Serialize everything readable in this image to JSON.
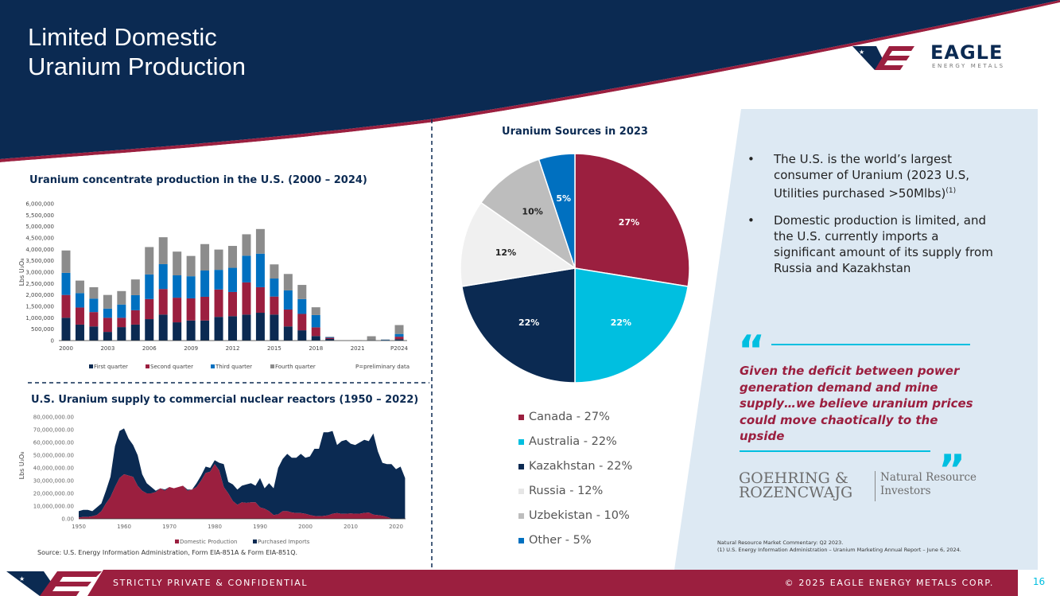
{
  "header": {
    "title": "Limited Domestic\nUranium Production",
    "logo_text": "EAGLE",
    "logo_sub": "ENERGY METALS"
  },
  "colors": {
    "navy": "#0b2a52",
    "crimson": "#9b1f3f",
    "cyan": "#00bfe0",
    "panel": "#dde9f3"
  },
  "bar_chart": {
    "title": "Uranium concentrate production in the U.S. (2000 – 2024)",
    "note": "P=preliminary data"
  },
  "area_chart": {
    "title": "U.S. Uranium supply to commercial nuclear reactors (1950 – 2022)",
    "source": "Source: U.S. Energy Information Administration, Form EIA-851A & Form EIA-851Q."
  },
  "pie_chart": {
    "title": "Uranium Sources in 2023"
  },
  "chart_data": [
    {
      "type": "bar",
      "stacked": true,
      "title": "Uranium concentrate production in the U.S. (2000 – 2024)",
      "ylabel": "Lbs U3O8",
      "ylim": [
        0,
        6000000
      ],
      "yticks": [
        "6,000,000",
        "5,500,000",
        "5,000,000",
        "4,500,000",
        "4,000,000",
        "3,500,000",
        "3,000,000",
        "2,500,000",
        "2,000,000",
        "1,500,000",
        "1,000,000",
        "500,000",
        "0"
      ],
      "xtick_labels": {
        "2000": "2000",
        "2003": "2003",
        "2006": "2006",
        "2009": "2009",
        "2012": "2012",
        "2015": "2015",
        "2018": "2018",
        "2021": "2021",
        "2024": "P2024"
      },
      "categories": [
        "2000",
        "2001",
        "2002",
        "2003",
        "2004",
        "2005",
        "2006",
        "2007",
        "2008",
        "2009",
        "2010",
        "2011",
        "2012",
        "2013",
        "2014",
        "2015",
        "2016",
        "2017",
        "2018",
        "2019",
        "2020",
        "2021",
        "2022",
        "2023",
        "2024"
      ],
      "series": [
        {
          "name": "First quarter",
          "color": "#0b2a52",
          "values": [
            1000000,
            700000,
            620000,
            380000,
            590000,
            700000,
            940000,
            1140000,
            800000,
            880000,
            880000,
            1040000,
            1070000,
            1140000,
            1220000,
            1140000,
            620000,
            450000,
            200000,
            70000,
            0,
            0,
            0,
            10000,
            60000
          ]
        },
        {
          "name": "Second quarter",
          "color": "#9b1f3f",
          "values": [
            1000000,
            750000,
            630000,
            620000,
            410000,
            630000,
            880000,
            1120000,
            1080000,
            970000,
            1040000,
            1200000,
            1060000,
            1410000,
            1120000,
            790000,
            740000,
            720000,
            380000,
            50000,
            0,
            0,
            0,
            10000,
            110000
          ]
        },
        {
          "name": "Third quarter",
          "color": "#0070c0",
          "values": [
            970000,
            630000,
            590000,
            400000,
            580000,
            660000,
            1080000,
            1090000,
            980000,
            970000,
            1150000,
            860000,
            1060000,
            1170000,
            1470000,
            790000,
            840000,
            650000,
            540000,
            30000,
            0,
            0,
            10000,
            20000,
            120000
          ]
        },
        {
          "name": "Fourth quarter",
          "color": "#8c8c8c",
          "values": [
            980000,
            550000,
            500000,
            600000,
            590000,
            690000,
            1200000,
            1180000,
            1040000,
            890000,
            1160000,
            890000,
            960000,
            940000,
            1080000,
            620000,
            720000,
            620000,
            340000,
            20000,
            0,
            10000,
            180000,
            10000,
            390000
          ]
        }
      ]
    },
    {
      "type": "area",
      "stacked": true,
      "title": "U.S. Uranium supply to commercial nuclear reactors (1950 – 2022)",
      "ylabel": "Lbs U3O8",
      "ylim": [
        0,
        80000000
      ],
      "yticks": [
        "80,000,000.00",
        "70,000,000.00",
        "60,000,000.00",
        "50,000,000.00",
        "40,000,000.00",
        "30,000,000.00",
        "20,000,000.00",
        "10,000,000.00",
        "0.00"
      ],
      "xticks": [
        "1950",
        "1960",
        "1970",
        "1980",
        "1990",
        "2000",
        "2010",
        "2020"
      ],
      "x_start": 1950,
      "series": [
        {
          "name": "Domestic Production",
          "color": "#9b1f3f",
          "values_millions": [
            1,
            1.5,
            1.5,
            2,
            3,
            6,
            12,
            17,
            25,
            32,
            35,
            34,
            33,
            26,
            22,
            20,
            20,
            21,
            24,
            22,
            25,
            24,
            25,
            26,
            22,
            23,
            25,
            30,
            36,
            37,
            43,
            38,
            25,
            20,
            14,
            11,
            13,
            12.5,
            13,
            13,
            9,
            8,
            6,
            3,
            3.5,
            6,
            6,
            5,
            4.5,
            4.5,
            4,
            3,
            2.3,
            2,
            2.3,
            2.7,
            4,
            4.5,
            3.9,
            4,
            4.2,
            4,
            4.1,
            4.6,
            4.9,
            3.3,
            2.9,
            2.4,
            1.5,
            0.2,
            0,
            0,
            0.2
          ]
        },
        {
          "name": "Purchased Imports",
          "color": "#0b2a52",
          "values_millions": [
            5,
            5.5,
            5.5,
            4,
            6,
            6,
            10,
            16,
            32,
            37,
            36,
            29,
            25,
            24,
            13,
            8,
            5,
            1,
            0,
            1,
            0,
            0,
            0,
            0,
            1,
            0,
            3,
            4,
            5,
            3,
            3,
            6,
            18,
            9,
            13,
            12,
            13,
            14.5,
            15,
            13,
            23,
            16,
            22,
            21,
            36.5,
            41,
            45,
            43,
            43.5,
            46.5,
            44,
            46,
            52.7,
            53,
            65.7,
            65.3,
            65,
            53.5,
            57.1,
            58,
            54.8,
            54,
            55.9,
            57.4,
            56.1,
            63.7,
            50.1,
            41.6,
            41.5,
            42.8,
            39,
            41,
            31.8
          ]
        }
      ]
    },
    {
      "type": "pie",
      "title": "Uranium Sources in 2023",
      "slices": [
        {
          "label": "Canada",
          "value": 27,
          "text": "27%",
          "legend": "Canada - 27%",
          "color": "#9b1f3f",
          "label_color": "#fff"
        },
        {
          "label": "Australia",
          "value": 22,
          "text": "22%",
          "legend": "Australia - 22%",
          "color": "#00bfe0",
          "label_color": "#fff"
        },
        {
          "label": "Kazakhstan",
          "value": 22,
          "text": "22%",
          "legend": "Kazakhstan - 22%",
          "color": "#0b2a52",
          "label_color": "#fff"
        },
        {
          "label": "Russia",
          "value": 12,
          "text": "12%",
          "legend": "Russia - 12%",
          "color": "#f0f0f0",
          "label_color": "#222"
        },
        {
          "label": "Uzbekistan",
          "value": 10,
          "text": "10%",
          "legend": "Uzbekistan - 10%",
          "color": "#bdbdbd",
          "label_color": "#222"
        },
        {
          "label": "Other",
          "value": 5,
          "text": "5%",
          "legend": "Other - 5%",
          "color": "#0070c0",
          "label_color": "#fff"
        }
      ]
    }
  ],
  "bullets": [
    "The U.S. is the world’s largest consumer of Uranium (2023 U.S, Utilities purchased >50Mlbs)",
    "Domestic production is limited, and the U.S. currently imports a significant amount of its supply from Russia and Kazakhstan"
  ],
  "bullet_sup": "(1)",
  "quote": {
    "text": "Given the deficit between power generation demand and mine supply…we believe uranium prices could move chaotically to the upside",
    "source_left_1": "GOEHRING &",
    "source_left_2": "ROZENCWAJG",
    "source_right_1": "Natural Resource",
    "source_right_2": "Investors"
  },
  "footnotes": [
    "Natural Resource Market Commentary: Q2 2023.",
    "(1)  U.S. Energy Information Administration – Uranium Marketing Annual Report – June 6, 2024."
  ],
  "footer": {
    "left": "STRICTLY PRIVATE & CONFIDENTIAL",
    "right": "© 2025 EAGLE ENERGY METALS CORP.",
    "page": "16"
  }
}
